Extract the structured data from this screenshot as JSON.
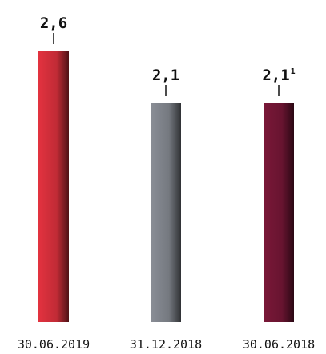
{
  "chart_data": {
    "type": "bar",
    "categories": [
      "30.06.2019",
      "31.12.2018",
      "30.06.2018"
    ],
    "values": [
      2.6,
      2.1,
      2.1
    ],
    "value_labels": [
      "2,6",
      "2,1",
      "2,1"
    ],
    "value_label_footnotes": [
      "",
      "",
      "1"
    ],
    "colors": [
      "#e3323f",
      "#8a8e96",
      "#7a1838"
    ],
    "ylim": [
      0,
      2.6
    ],
    "grid": false,
    "legend": "none",
    "title": "",
    "xlabel": "",
    "ylabel": ""
  }
}
